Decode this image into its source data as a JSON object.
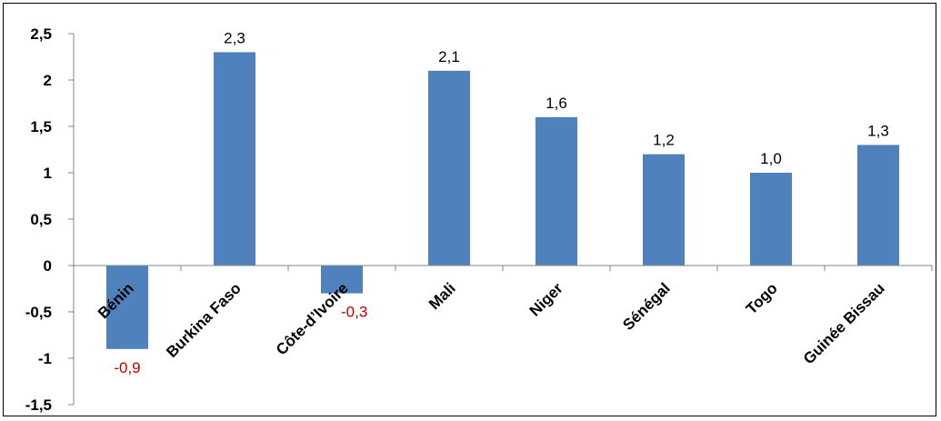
{
  "chart_data": {
    "type": "bar",
    "categories": [
      "Bénin",
      "Burkina Faso",
      "Côte-d’Ivoire",
      "Mali",
      "Niger",
      "Sénégal",
      "Togo",
      "Guinée Bissau"
    ],
    "values": [
      -0.9,
      2.3,
      -0.3,
      2.1,
      1.6,
      1.2,
      1.0,
      1.3
    ],
    "data_labels": [
      "-0,9",
      "2,3",
      "-0,3",
      "2,1",
      "1,6",
      "1,2",
      "1,0",
      "1,3"
    ],
    "yticks": [
      2.5,
      2,
      1.5,
      1,
      0.5,
      0,
      -0.5,
      -1,
      -1.5
    ],
    "ytick_labels": [
      "2,5",
      "2",
      "1,5",
      "1",
      "0,5",
      "0",
      "-0,5",
      "-1",
      "-1,5"
    ],
    "ylim": [
      -1.5,
      2.5
    ],
    "title": "",
    "xlabel": "",
    "ylabel": "",
    "grid": false,
    "legend": "none",
    "colors": {
      "bar": "#4f81bd",
      "positive_label": "#000000",
      "negative_label": "#c00000",
      "axis": "#868686"
    }
  }
}
